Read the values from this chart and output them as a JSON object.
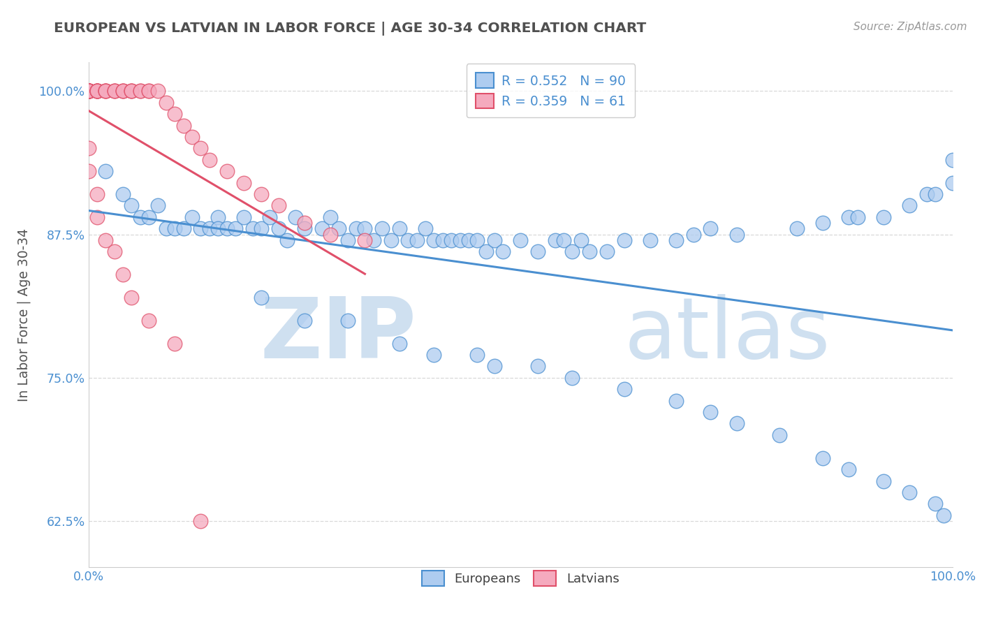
{
  "title": "EUROPEAN VS LATVIAN IN LABOR FORCE | AGE 30-34 CORRELATION CHART",
  "source_text": "Source: ZipAtlas.com",
  "ylabel": "In Labor Force | Age 30-34",
  "xlim": [
    0.0,
    1.0
  ],
  "ylim": [
    0.585,
    1.025
  ],
  "yticks": [
    0.625,
    0.75,
    0.875,
    1.0
  ],
  "ytick_labels": [
    "62.5%",
    "75.0%",
    "87.5%",
    "100.0%"
  ],
  "xtick_labels": [
    "0.0%",
    "100.0%"
  ],
  "xticks": [
    0.0,
    1.0
  ],
  "european_R": 0.552,
  "european_N": 90,
  "latvian_R": 0.359,
  "latvian_N": 61,
  "european_color": "#aeccf0",
  "latvian_color": "#f5aabe",
  "european_line_color": "#4a8fd0",
  "latvian_line_color": "#e0506a",
  "watermark_zip": "ZIP",
  "watermark_atlas": "atlas",
  "watermark_color": "#cfe0f0",
  "background_color": "#ffffff",
  "grid_color": "#d8d8d8",
  "title_color": "#505050",
  "label_color": "#555555",
  "tick_color": "#4a8fd0",
  "eu_x": [
    0.02,
    0.04,
    0.05,
    0.06,
    0.07,
    0.08,
    0.09,
    0.1,
    0.11,
    0.12,
    0.13,
    0.14,
    0.15,
    0.15,
    0.16,
    0.17,
    0.18,
    0.19,
    0.2,
    0.21,
    0.22,
    0.23,
    0.24,
    0.25,
    0.27,
    0.28,
    0.29,
    0.3,
    0.31,
    0.32,
    0.33,
    0.34,
    0.35,
    0.36,
    0.37,
    0.38,
    0.39,
    0.4,
    0.41,
    0.42,
    0.43,
    0.44,
    0.45,
    0.46,
    0.47,
    0.48,
    0.5,
    0.52,
    0.54,
    0.55,
    0.56,
    0.57,
    0.58,
    0.6,
    0.62,
    0.65,
    0.68,
    0.7,
    0.72,
    0.75,
    0.82,
    0.85,
    0.88,
    0.89,
    0.92,
    0.95,
    0.97,
    0.98,
    1.0,
    1.0,
    0.2,
    0.25,
    0.3,
    0.36,
    0.4,
    0.45,
    0.47,
    0.52,
    0.56,
    0.62,
    0.68,
    0.72,
    0.75,
    0.8,
    0.85,
    0.88,
    0.92,
    0.95,
    0.98,
    0.99
  ],
  "eu_y": [
    0.93,
    0.91,
    0.9,
    0.89,
    0.89,
    0.9,
    0.88,
    0.88,
    0.88,
    0.89,
    0.88,
    0.88,
    0.89,
    0.88,
    0.88,
    0.88,
    0.89,
    0.88,
    0.88,
    0.89,
    0.88,
    0.87,
    0.89,
    0.88,
    0.88,
    0.89,
    0.88,
    0.87,
    0.88,
    0.88,
    0.87,
    0.88,
    0.87,
    0.88,
    0.87,
    0.87,
    0.88,
    0.87,
    0.87,
    0.87,
    0.87,
    0.87,
    0.87,
    0.86,
    0.87,
    0.86,
    0.87,
    0.86,
    0.87,
    0.87,
    0.86,
    0.87,
    0.86,
    0.86,
    0.87,
    0.87,
    0.87,
    0.875,
    0.88,
    0.875,
    0.88,
    0.885,
    0.89,
    0.89,
    0.89,
    0.9,
    0.91,
    0.91,
    0.92,
    0.94,
    0.82,
    0.8,
    0.8,
    0.78,
    0.77,
    0.77,
    0.76,
    0.76,
    0.75,
    0.74,
    0.73,
    0.72,
    0.71,
    0.7,
    0.68,
    0.67,
    0.66,
    0.65,
    0.64,
    0.63
  ],
  "lv_x": [
    0.0,
    0.0,
    0.0,
    0.0,
    0.0,
    0.0,
    0.0,
    0.0,
    0.0,
    0.0,
    0.0,
    0.0,
    0.0,
    0.01,
    0.01,
    0.01,
    0.01,
    0.01,
    0.01,
    0.02,
    0.02,
    0.02,
    0.02,
    0.03,
    0.03,
    0.03,
    0.04,
    0.04,
    0.04,
    0.05,
    0.05,
    0.05,
    0.06,
    0.06,
    0.07,
    0.07,
    0.08,
    0.09,
    0.1,
    0.11,
    0.12,
    0.13,
    0.14,
    0.16,
    0.18,
    0.2,
    0.22,
    0.25,
    0.28,
    0.32,
    0.0,
    0.0,
    0.01,
    0.01,
    0.02,
    0.03,
    0.04,
    0.05,
    0.07,
    0.1,
    0.13
  ],
  "lv_y": [
    1.0,
    1.0,
    1.0,
    1.0,
    1.0,
    1.0,
    1.0,
    1.0,
    1.0,
    1.0,
    1.0,
    1.0,
    1.0,
    1.0,
    1.0,
    1.0,
    1.0,
    1.0,
    1.0,
    1.0,
    1.0,
    1.0,
    1.0,
    1.0,
    1.0,
    1.0,
    1.0,
    1.0,
    1.0,
    1.0,
    1.0,
    1.0,
    1.0,
    1.0,
    1.0,
    1.0,
    1.0,
    0.99,
    0.98,
    0.97,
    0.96,
    0.95,
    0.94,
    0.93,
    0.92,
    0.91,
    0.9,
    0.885,
    0.875,
    0.87,
    0.95,
    0.93,
    0.91,
    0.89,
    0.87,
    0.86,
    0.84,
    0.82,
    0.8,
    0.78,
    0.625
  ]
}
